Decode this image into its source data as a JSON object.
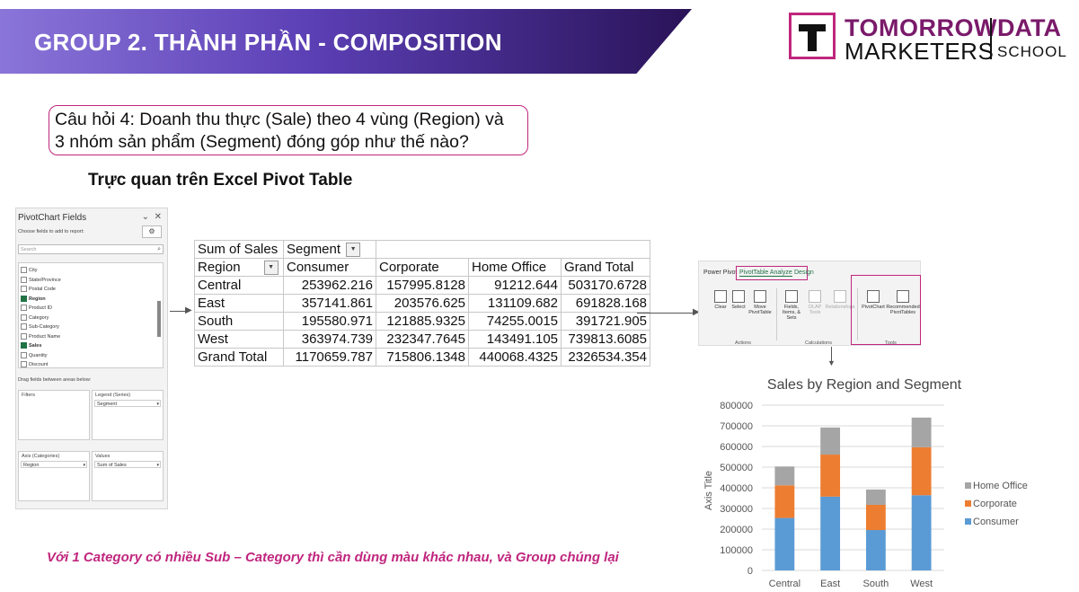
{
  "header": {
    "title": "GROUP 2. THÀNH PHẦN - COMPOSITION",
    "logo": {
      "line1": "TOMORROW",
      "line2": "MARKETERS",
      "line3": "DATA",
      "line4": "SCHOOL"
    }
  },
  "question": {
    "line1": "Câu hỏi 4: Doanh thu thực (Sale) theo 4 vùng (Region) và",
    "line2": "3 nhóm sản phẩm (Segment) đóng góp như thế nào?"
  },
  "subtitle": "Trực quan trên Excel Pivot Table",
  "fields_panel": {
    "title": "PivotChart Fields",
    "subtitle": "Choose fields to add to report:",
    "search_placeholder": "Search",
    "fields": [
      {
        "label": "City",
        "checked": false
      },
      {
        "label": "State/Province",
        "checked": false
      },
      {
        "label": "Postal Code",
        "checked": false
      },
      {
        "label": "Region",
        "checked": true
      },
      {
        "label": "Product ID",
        "checked": false
      },
      {
        "label": "Category",
        "checked": false
      },
      {
        "label": "Sub-Category",
        "checked": false
      },
      {
        "label": "Product Name",
        "checked": false
      },
      {
        "label": "Sales",
        "checked": true
      },
      {
        "label": "Quantity",
        "checked": false
      },
      {
        "label": "Discount",
        "checked": false
      }
    ],
    "drag_label": "Drag fields between areas below:",
    "areas": {
      "filters": "Filters",
      "legend": "Legend (Series)",
      "legend_value": "Segment",
      "axis": "Axis (Categories)",
      "axis_value": "Region",
      "values": "Values",
      "values_value": "Sum of Sales"
    }
  },
  "pivot": {
    "corner": "Sum of Sales",
    "col_field": "Segment",
    "row_field": "Region",
    "columns": [
      "Consumer",
      "Corporate",
      "Home Office",
      "Grand Total"
    ],
    "rows": [
      {
        "label": "Central",
        "values": [
          "253962.216",
          "157995.8128",
          "91212.644",
          "503170.6728"
        ]
      },
      {
        "label": "East",
        "values": [
          "357141.861",
          "203576.625",
          "131109.682",
          "691828.168"
        ]
      },
      {
        "label": "South",
        "values": [
          "195580.971",
          "121885.9325",
          "74255.0015",
          "391721.905"
        ]
      },
      {
        "label": "West",
        "values": [
          "363974.739",
          "232347.7645",
          "143491.105",
          "739813.6085"
        ]
      },
      {
        "label": "Grand Total",
        "values": [
          "1170659.787",
          "715806.1348",
          "440068.4325",
          "2326534.354"
        ]
      }
    ]
  },
  "ribbon": {
    "tabs": [
      "Power Pivot",
      "PivotTable Analyze",
      "Design"
    ],
    "buttons": [
      "Clear",
      "Select",
      "Move PivotTable",
      "Fields, Items, & Sets",
      "OLAP Tools",
      "Relationships",
      "PivotChart",
      "Recommended PivotTables"
    ],
    "groups": [
      "Actions",
      "Calculations",
      "Tools"
    ]
  },
  "colors": {
    "consumer": "#5b9bd5",
    "corporate": "#ed7d31",
    "home_office": "#a5a5a5",
    "accent": "#c0267e"
  },
  "chart_data": {
    "type": "bar",
    "stacked": true,
    "title": "Sales by Region and Segment",
    "ylabel": "Axis Title",
    "xlabel": "",
    "categories": [
      "Central",
      "East",
      "South",
      "West"
    ],
    "series": [
      {
        "name": "Consumer",
        "values": [
          253962.216,
          357141.861,
          195580.971,
          363974.739
        ]
      },
      {
        "name": "Corporate",
        "values": [
          157995.8128,
          203576.625,
          121885.9325,
          232347.7645
        ]
      },
      {
        "name": "Home Office",
        "values": [
          91212.644,
          131109.682,
          74255.0015,
          143491.105
        ]
      }
    ],
    "ylim": [
      0,
      800000
    ],
    "yticks": [
      "0",
      "100000",
      "200000",
      "300000",
      "400000",
      "500000",
      "600000",
      "700000",
      "800000"
    ],
    "legend_position": "right",
    "legend_order": [
      "Home Office",
      "Corporate",
      "Consumer"
    ]
  },
  "caption": "Với 1 Category có nhiều Sub – Category thì cần dùng màu khác nhau, và Group chúng lại"
}
